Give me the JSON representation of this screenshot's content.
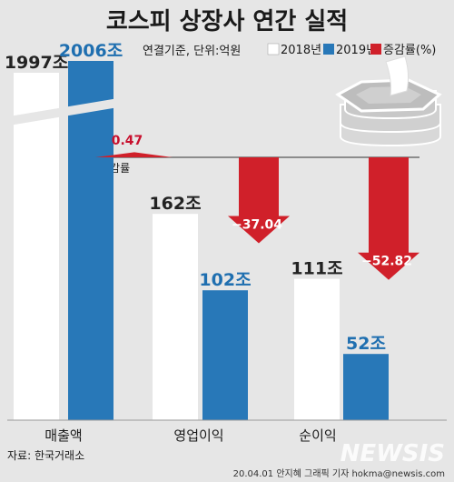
{
  "title": "코스피 상장사 연간 실적",
  "subtitle": "연결기준, 단위:억원",
  "source": "자료: 한국거래소",
  "credit": "20.04.01 안지혜 그래픽 기자  hokma@newsis.com",
  "watermark": "NEWSIS",
  "colors": {
    "y2018": "#ffffff",
    "y2019": "#2878b8",
    "change": "#d0202a",
    "background": "#e6e6e6",
    "label2019": "#1f6fb0",
    "labelChange": "#c8102e"
  },
  "chart_data": {
    "type": "bar",
    "categories": [
      "매출액",
      "영업이익",
      "순이익"
    ],
    "series": [
      {
        "name": "2018년",
        "values": [
          1997,
          162,
          111
        ]
      },
      {
        "name": "2019년",
        "values": [
          2006,
          102,
          52
        ]
      }
    ],
    "value_labels": {
      "2018년": [
        "1997조",
        "162조",
        "111조"
      ],
      "2019년": [
        "2006조",
        "102조",
        "52조"
      ]
    },
    "change_rate": {
      "name": "증감률(%)",
      "values": [
        0.47,
        -37.04,
        -52.82
      ],
      "labels": [
        "0.47",
        "−37.04",
        "−52.82"
      ],
      "axis_label": "증감률"
    },
    "axis_break_on_first_category": true,
    "legend": {
      "placement": "top-right",
      "items": [
        "2018년",
        "2019년",
        "증감률(%)"
      ]
    }
  }
}
